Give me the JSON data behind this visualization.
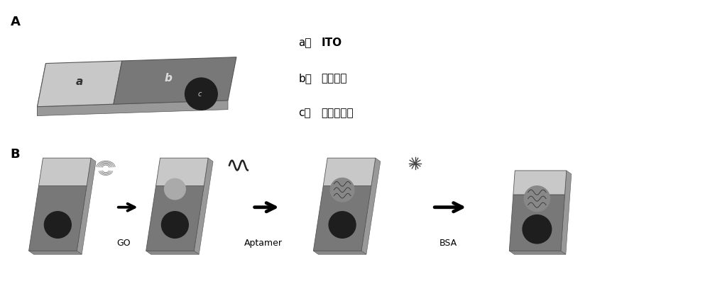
{
  "bg_color": "#ffffff",
  "label_A": "A",
  "label_B": "B",
  "color_ito": "#c8c8c8",
  "color_detect": "#787878",
  "color_side_light": "#a8a8a8",
  "color_side_dark": "#686868",
  "color_black": "#151515",
  "color_circle_dark": "#1e1e1e",
  "color_go_spot": "#aaaaaa",
  "color_apt_spot": "#888888",
  "legend_a_label": "a：",
  "legend_a_text": "ITO",
  "legend_b_label": "b：",
  "legend_b_text": "检测区域",
  "legend_c_label": "c：",
  "legend_c_text": "可视化区域"
}
